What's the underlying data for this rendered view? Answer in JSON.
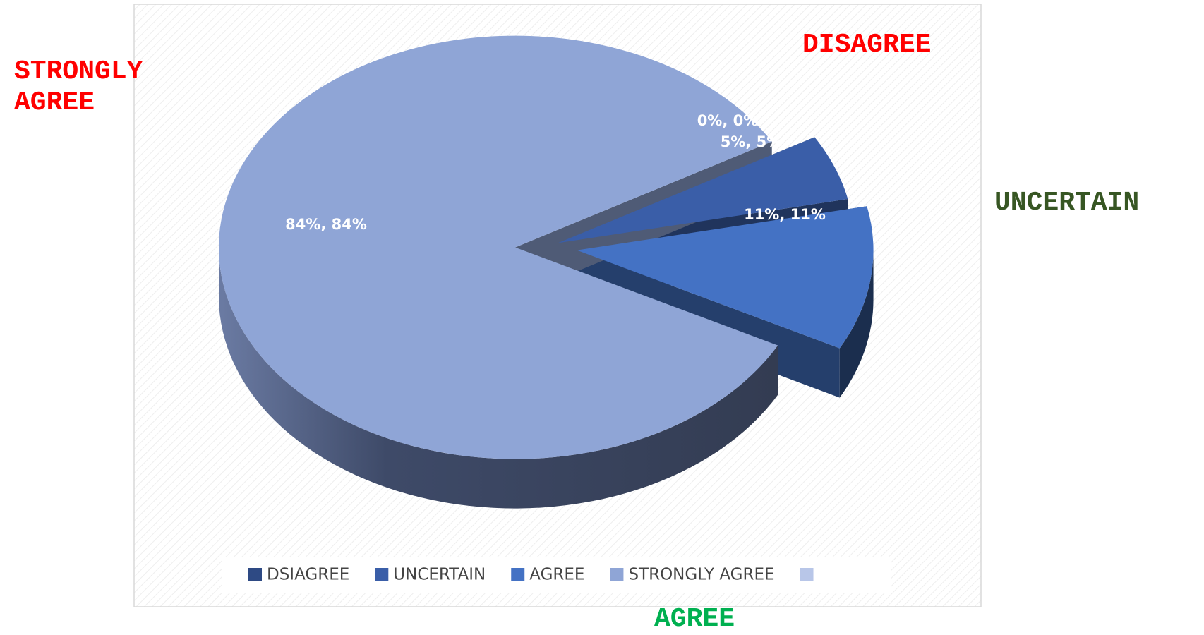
{
  "chart_data": {
    "type": "pie3d",
    "categories": [
      "DSIAGREE",
      "UNCERTAIN",
      "AGREE",
      "STRONGLY AGREE",
      null
    ],
    "values": [
      0,
      5,
      11,
      84,
      0
    ],
    "value_labels": [
      "0%, 0%",
      "5%, 5%",
      "11%, 11%",
      "84%, 84%",
      null
    ],
    "colors": [
      "#2e4a84",
      "#3a5ea8",
      "#4472c4",
      "#8fa5d6",
      "#b8c6e8"
    ],
    "legend": "bottom",
    "annotations": [
      {
        "text": "STRONGLY AGREE",
        "color": "#ff0000"
      },
      {
        "text": "DISAGREE",
        "color": "#ff0000"
      },
      {
        "text": "UNCERTAIN",
        "color": "#375623"
      },
      {
        "text": "AGREE",
        "color": "#00b050"
      }
    ]
  }
}
